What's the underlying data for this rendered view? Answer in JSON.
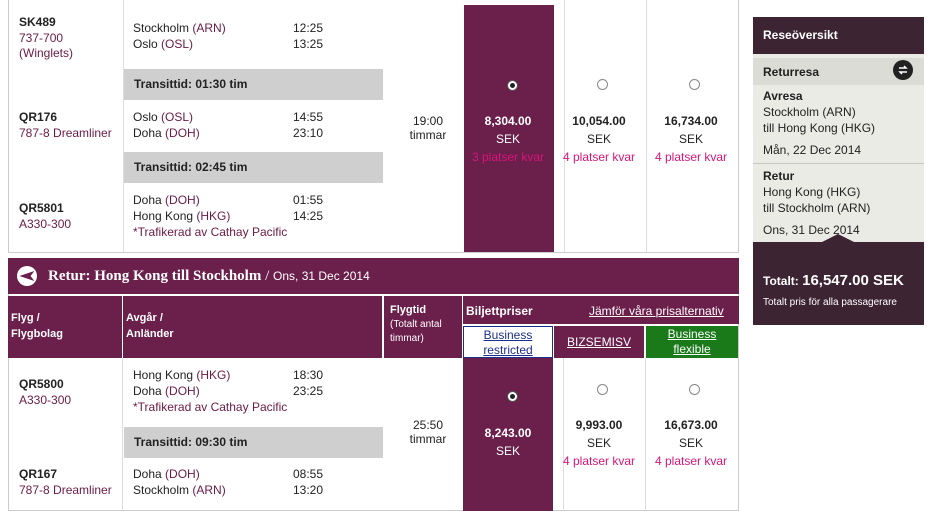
{
  "outbound": {
    "segments": [
      {
        "flight": "SK489",
        "aircraft": "737-700 (Winglets)",
        "from_city": "Stockholm",
        "from_code": "(ARN)",
        "to_city": "Oslo",
        "to_code": "(OSL)",
        "dep": "12:25",
        "arr": "13:25",
        "note": ""
      },
      {
        "flight": "QR176",
        "aircraft": "787-8 Dreamliner",
        "from_city": "Oslo",
        "from_code": "(OSL)",
        "to_city": "Doha",
        "to_code": "(DOH)",
        "dep": "14:55",
        "arr": "23:10",
        "note": ""
      },
      {
        "flight": "QR5801",
        "aircraft": "A330-300",
        "from_city": "Doha",
        "from_code": "(DOH)",
        "to_city": "Hong Kong",
        "to_code": "(HKG)",
        "dep": "01:55",
        "arr": "14:25",
        "note": "*Trafikerad av Cathay Pacific"
      }
    ],
    "transits": [
      "Transittid: 01:30 tim",
      "Transittid: 02:45 tim"
    ],
    "duration": [
      "19:00",
      "timmar"
    ],
    "prices": [
      {
        "amount": "8,304.00",
        "currency": "SEK",
        "seats": "3 platser kvar",
        "selected": true
      },
      {
        "amount": "10,054.00",
        "currency": "SEK",
        "seats": "4 platser kvar",
        "selected": false
      },
      {
        "amount": "16,734.00",
        "currency": "SEK",
        "seats": "4 platser kvar",
        "selected": false
      }
    ]
  },
  "return_header": {
    "label": "Retur:",
    "route": "Hong Kong till Stockholm",
    "sep": "/",
    "date": "Ons, 31 Dec 2014"
  },
  "columns": {
    "flight": [
      "Flyg /",
      "Flygbolag"
    ],
    "depart": [
      "Avgår /",
      "Anländer"
    ],
    "duration_title": "Flygtid",
    "duration_sub": [
      "(Totalt antal",
      "timmar)"
    ],
    "prices_title": "Biljettpriser",
    "compare_link": "Jämför våra prisalternativ",
    "fares": [
      {
        "line1": "Business",
        "line2": "restricted",
        "color": "#1c2f8a"
      },
      {
        "line1": "BIZSEMISV",
        "line2": "",
        "color": "#6b1f4b"
      },
      {
        "line1": "Business",
        "line2": "flexible",
        "color": "#1a7a1a"
      }
    ]
  },
  "return": {
    "segments": [
      {
        "flight": "QR5800",
        "aircraft": "A330-300",
        "from_city": "Hong Kong",
        "from_code": "(HKG)",
        "to_city": "Doha",
        "to_code": "(DOH)",
        "dep": "18:30",
        "arr": "23:25",
        "note": "*Trafikerad av Cathay Pacific"
      },
      {
        "flight": "QR167",
        "aircraft": "787-8 Dreamliner",
        "from_city": "Doha",
        "from_code": "(DOH)",
        "to_city": "Stockholm",
        "to_code": "(ARN)",
        "dep": "08:55",
        "arr": "13:20",
        "note": ""
      }
    ],
    "transits": [
      "Transittid: 09:30 tim"
    ],
    "duration": [
      "25:50",
      "timmar"
    ],
    "prices": [
      {
        "amount": "8,243.00",
        "currency": "SEK",
        "seats": "",
        "selected": true
      },
      {
        "amount": "9,993.00",
        "currency": "SEK",
        "seats": "4 platser kvar",
        "selected": false
      },
      {
        "amount": "16,673.00",
        "currency": "SEK",
        "seats": "4 platser kvar",
        "selected": false
      }
    ]
  },
  "summary": {
    "title": "Reseöversikt",
    "trip_type": "Returresa",
    "out_label": "Avresa",
    "out_from": "Stockholm (ARN)",
    "out_to": "till Hong Kong (HKG)",
    "out_date": "Mån, 22 Dec 2014",
    "ret_label": "Retur",
    "ret_from": "Hong Kong (HKG)",
    "ret_to": "till Stockholm (ARN)",
    "ret_date": "Ons, 31 Dec 2014",
    "total_label": "Totalt:",
    "total_value": "16,547.00 SEK",
    "total_note": "Totalt pris för alla passagerare"
  }
}
